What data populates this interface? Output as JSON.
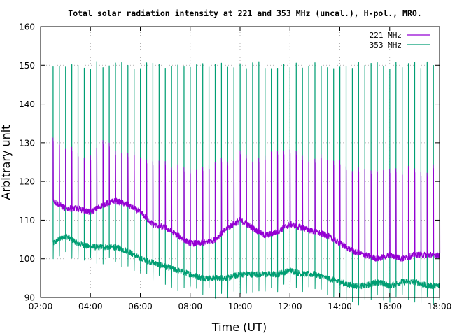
{
  "chart_data": {
    "type": "line",
    "title": "Total solar radiation intensity at 221 and 353 MHz (uncal.), H-pol., MRO.",
    "xlabel": "Time (UT)",
    "ylabel": "Arbitrary unit",
    "xlim": [
      "02:00",
      "18:00"
    ],
    "ylim": [
      90,
      160
    ],
    "x_ticks": [
      "02:00",
      "04:00",
      "06:00",
      "08:00",
      "10:00",
      "12:00",
      "14:00",
      "16:00",
      "18:00"
    ],
    "y_ticks": [
      "90",
      "100",
      "110",
      "120",
      "130",
      "140",
      "150",
      "160"
    ],
    "grid": true,
    "legend_position": "top-right",
    "spike_interval_minutes": 15,
    "series": [
      {
        "name": "221 MHz",
        "color": "#9400d3",
        "x": [
          "02:30",
          "03:00",
          "03:30",
          "04:00",
          "04:30",
          "05:00",
          "05:30",
          "06:00",
          "06:30",
          "07:00",
          "07:30",
          "08:00",
          "08:30",
          "09:00",
          "09:30",
          "10:00",
          "10:30",
          "11:00",
          "11:30",
          "12:00",
          "12:30",
          "13:00",
          "13:30",
          "14:00",
          "14:30",
          "15:00",
          "15:30",
          "16:00",
          "16:30",
          "17:00",
          "17:30",
          "18:00"
        ],
        "y": [
          115,
          113,
          113,
          112,
          114,
          115,
          114,
          112,
          109,
          108,
          106,
          104,
          104,
          105,
          108,
          110,
          108,
          106,
          107,
          109,
          108,
          107,
          106,
          104,
          102,
          101,
          100,
          101,
          100,
          101,
          101,
          101
        ],
        "spike_top": [
          132,
          129,
          127,
          127,
          130,
          128,
          128,
          126,
          125,
          125,
          124,
          124,
          123,
          125,
          125,
          127,
          126,
          127,
          127,
          128,
          126,
          126,
          126,
          125,
          123,
          123,
          123,
          124,
          123,
          124,
          122,
          125
        ],
        "spike_base": [
          126,
          125,
          124,
          124,
          125,
          124,
          124,
          123,
          123,
          122,
          122,
          122,
          122,
          122,
          123,
          123,
          123,
          123,
          122,
          123,
          123,
          123,
          122,
          122,
          122,
          122,
          122,
          121,
          121,
          121,
          121,
          121
        ]
      },
      {
        "name": "353 MHz",
        "color": "#009e73",
        "x": [
          "02:30",
          "03:00",
          "03:30",
          "04:00",
          "04:30",
          "05:00",
          "05:30",
          "06:00",
          "06:30",
          "07:00",
          "07:30",
          "08:00",
          "08:30",
          "09:00",
          "09:30",
          "10:00",
          "10:30",
          "11:00",
          "11:30",
          "12:00",
          "12:30",
          "13:00",
          "13:30",
          "14:00",
          "14:30",
          "15:00",
          "15:30",
          "16:00",
          "16:30",
          "17:00",
          "17:30",
          "18:00"
        ],
        "y": [
          104,
          106,
          104,
          103,
          103,
          103,
          102,
          100,
          99,
          98,
          97,
          96,
          95,
          95,
          95,
          96,
          96,
          96,
          96,
          97,
          96,
          96,
          95,
          94,
          93,
          93,
          94,
          93,
          94,
          94,
          93,
          93
        ],
        "spike_top": [
          150,
          150,
          150,
          150,
          150,
          150,
          150,
          150,
          150,
          150,
          150,
          150,
          150,
          150,
          150,
          150,
          150,
          150,
          150,
          150,
          150,
          150,
          150,
          150,
          150,
          150,
          150,
          150,
          150,
          150,
          150,
          150
        ]
      }
    ]
  }
}
